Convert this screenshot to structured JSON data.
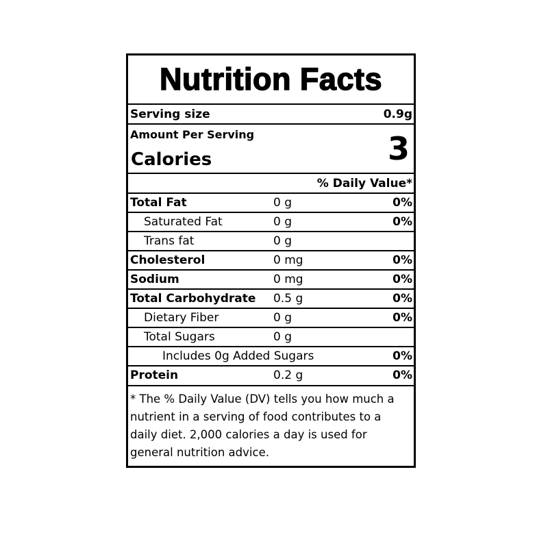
{
  "title": "Nutrition Facts",
  "serving": {
    "label": "Serving size",
    "value": "0.9g"
  },
  "calories": {
    "amount_per_serving": "Amount Per Serving",
    "label": "Calories",
    "value": "3"
  },
  "daily_value_header": "% Daily Value*",
  "nutrients": [
    {
      "name": "Total Fat",
      "amount": "0 g",
      "dv": "0%"
    },
    {
      "name": "Saturated Fat",
      "amount": "0 g",
      "dv": "0%"
    },
    {
      "name": "Trans fat",
      "amount": "0 g",
      "dv": ""
    },
    {
      "name": "Cholesterol",
      "amount": "0 mg",
      "dv": "0%"
    },
    {
      "name": "Sodium",
      "amount": "0 mg",
      "dv": "0%"
    },
    {
      "name": "Total Carbohydrate",
      "amount": "0.5 g",
      "dv": "0%"
    },
    {
      "name": "Dietary Fiber",
      "amount": "0 g",
      "dv": "0%"
    },
    {
      "name": "Total Sugars",
      "amount": "0 g",
      "dv": ""
    },
    {
      "name": "Includes 0g Added Sugars",
      "amount": "",
      "dv": "0%"
    },
    {
      "name": "Protein",
      "amount": "0.2 g",
      "dv": "0%"
    }
  ],
  "footnote": "* The % Daily Value (DV) tells you how much a nutrient in a serving of food contributes to a daily diet. 2,000 calories a day is used for general nutrition advice."
}
